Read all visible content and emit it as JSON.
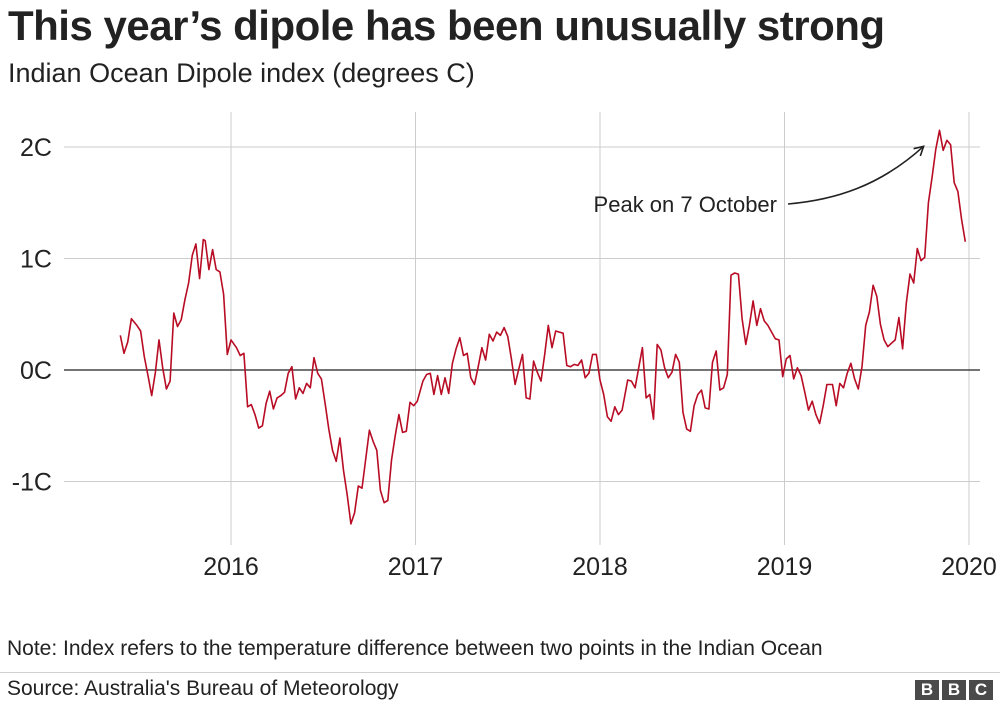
{
  "title": "This year’s dipole has been unusually strong",
  "subtitle": "Indian Ocean Dipole index (degrees C)",
  "note": "Note: Index refers to the temperature difference between two points in the Indian Ocean",
  "source": "Source: Australia's Bureau of Meteorology",
  "logo": [
    "B",
    "B",
    "C"
  ],
  "chart_data": {
    "type": "line",
    "title": "",
    "xlabel": "",
    "ylabel": "",
    "y_tick_labels": [
      "2C",
      "1C",
      "0C",
      "-1C"
    ],
    "y_ticks": [
      2,
      1,
      0,
      -1
    ],
    "x_tick_labels": [
      "2016",
      "2017",
      "2018",
      "2019",
      "2020"
    ],
    "x_ticks": [
      2016,
      2017,
      2018,
      2019,
      2020
    ],
    "xlim": [
      2015.38,
      2020.12
    ],
    "ylim": [
      -1.55,
      2.3
    ],
    "grid": true,
    "line_color": "#b80c24",
    "zero_line_color": "#222222",
    "annotation": {
      "text": "Peak on 7 October",
      "x": 2019.77,
      "y": 2.15
    },
    "series": [
      {
        "name": "",
        "points": [
          [
            2015.4,
            0.31
          ],
          [
            2015.42,
            0.15
          ],
          [
            2015.44,
            0.25
          ],
          [
            2015.46,
            0.46
          ],
          [
            2015.49,
            0.4
          ],
          [
            2015.51,
            0.35
          ],
          [
            2015.53,
            0.12
          ],
          [
            2015.55,
            -0.05
          ],
          [
            2015.57,
            -0.23
          ],
          [
            2015.59,
            -0.02
          ],
          [
            2015.61,
            0.27
          ],
          [
            2015.63,
            0.02
          ],
          [
            2015.65,
            -0.17
          ],
          [
            2015.67,
            -0.1
          ],
          [
            2015.69,
            0.51
          ],
          [
            2015.71,
            0.39
          ],
          [
            2015.73,
            0.45
          ],
          [
            2015.75,
            0.63
          ],
          [
            2015.77,
            0.78
          ],
          [
            2015.79,
            1.03
          ],
          [
            2015.81,
            1.13
          ],
          [
            2015.83,
            0.82
          ],
          [
            2015.85,
            1.17
          ],
          [
            2015.86,
            1.16
          ],
          [
            2015.88,
            0.9
          ],
          [
            2015.9,
            1.08
          ],
          [
            2015.92,
            0.9
          ],
          [
            2015.94,
            0.88
          ],
          [
            2015.96,
            0.68
          ],
          [
            2015.98,
            0.14
          ],
          [
            2016.0,
            0.27
          ],
          [
            2016.03,
            0.2
          ],
          [
            2016.05,
            0.13
          ],
          [
            2016.07,
            0.15
          ],
          [
            2016.09,
            -0.33
          ],
          [
            2016.11,
            -0.31
          ],
          [
            2016.13,
            -0.4
          ],
          [
            2016.15,
            -0.52
          ],
          [
            2016.17,
            -0.5
          ],
          [
            2016.19,
            -0.3
          ],
          [
            2016.21,
            -0.19
          ],
          [
            2016.23,
            -0.35
          ],
          [
            2016.25,
            -0.25
          ],
          [
            2016.27,
            -0.23
          ],
          [
            2016.29,
            -0.2
          ],
          [
            2016.31,
            -0.03
          ],
          [
            2016.33,
            0.03
          ],
          [
            2016.35,
            -0.26
          ],
          [
            2016.37,
            -0.16
          ],
          [
            2016.39,
            -0.21
          ],
          [
            2016.41,
            -0.12
          ],
          [
            2016.43,
            -0.16
          ],
          [
            2016.45,
            0.11
          ],
          [
            2016.47,
            -0.03
          ],
          [
            2016.49,
            -0.08
          ],
          [
            2016.51,
            -0.3
          ],
          [
            2016.53,
            -0.53
          ],
          [
            2016.55,
            -0.72
          ],
          [
            2016.57,
            -0.82
          ],
          [
            2016.59,
            -0.61
          ],
          [
            2016.61,
            -0.9
          ],
          [
            2016.63,
            -1.12
          ],
          [
            2016.65,
            -1.38
          ],
          [
            2016.67,
            -1.28
          ],
          [
            2016.69,
            -1.04
          ],
          [
            2016.71,
            -1.06
          ],
          [
            2016.73,
            -0.8
          ],
          [
            2016.75,
            -0.54
          ],
          [
            2016.77,
            -0.64
          ],
          [
            2016.79,
            -0.72
          ],
          [
            2016.81,
            -1.08
          ],
          [
            2016.83,
            -1.19
          ],
          [
            2016.85,
            -1.17
          ],
          [
            2016.87,
            -0.81
          ],
          [
            2016.89,
            -0.59
          ],
          [
            2016.91,
            -0.4
          ],
          [
            2016.93,
            -0.56
          ],
          [
            2016.95,
            -0.55
          ],
          [
            2016.97,
            -0.29
          ],
          [
            2016.99,
            -0.32
          ],
          [
            2017.01,
            -0.28
          ],
          [
            2017.04,
            -0.1
          ],
          [
            2017.06,
            -0.04
          ],
          [
            2017.08,
            -0.03
          ],
          [
            2017.1,
            -0.22
          ],
          [
            2017.12,
            -0.05
          ],
          [
            2017.14,
            -0.22
          ],
          [
            2017.16,
            -0.07
          ],
          [
            2017.18,
            -0.21
          ],
          [
            2017.2,
            0.06
          ],
          [
            2017.22,
            0.19
          ],
          [
            2017.24,
            0.29
          ],
          [
            2017.26,
            0.13
          ],
          [
            2017.28,
            0.15
          ],
          [
            2017.3,
            -0.07
          ],
          [
            2017.32,
            -0.13
          ],
          [
            2017.34,
            0.03
          ],
          [
            2017.36,
            0.2
          ],
          [
            2017.38,
            0.09
          ],
          [
            2017.4,
            0.32
          ],
          [
            2017.42,
            0.26
          ],
          [
            2017.44,
            0.34
          ],
          [
            2017.46,
            0.31
          ],
          [
            2017.48,
            0.38
          ],
          [
            2017.5,
            0.3
          ],
          [
            2017.52,
            0.1
          ],
          [
            2017.54,
            -0.13
          ],
          [
            2017.56,
            0.01
          ],
          [
            2017.58,
            0.14
          ],
          [
            2017.6,
            -0.25
          ],
          [
            2017.62,
            -0.26
          ],
          [
            2017.64,
            0.08
          ],
          [
            2017.66,
            -0.02
          ],
          [
            2017.68,
            -0.1
          ],
          [
            2017.7,
            0.14
          ],
          [
            2017.72,
            0.4
          ],
          [
            2017.74,
            0.2
          ],
          [
            2017.76,
            0.35
          ],
          [
            2017.78,
            0.34
          ],
          [
            2017.8,
            0.33
          ],
          [
            2017.82,
            0.04
          ],
          [
            2017.84,
            0.03
          ],
          [
            2017.86,
            0.05
          ],
          [
            2017.88,
            0.04
          ],
          [
            2017.9,
            0.09
          ],
          [
            2017.92,
            -0.07
          ],
          [
            2017.94,
            -0.03
          ],
          [
            2017.96,
            0.14
          ],
          [
            2017.98,
            0.14
          ],
          [
            2018.0,
            -0.09
          ],
          [
            2018.02,
            -0.22
          ],
          [
            2018.04,
            -0.42
          ],
          [
            2018.06,
            -0.46
          ],
          [
            2018.08,
            -0.33
          ],
          [
            2018.1,
            -0.4
          ],
          [
            2018.12,
            -0.36
          ],
          [
            2018.15,
            -0.09
          ],
          [
            2018.17,
            -0.1
          ],
          [
            2018.19,
            -0.16
          ],
          [
            2018.21,
            0.02
          ],
          [
            2018.23,
            0.2
          ],
          [
            2018.25,
            -0.25
          ],
          [
            2018.27,
            -0.22
          ],
          [
            2018.29,
            -0.44
          ],
          [
            2018.31,
            0.23
          ],
          [
            2018.33,
            0.18
          ],
          [
            2018.35,
            0.02
          ],
          [
            2018.37,
            -0.07
          ],
          [
            2018.39,
            -0.02
          ],
          [
            2018.41,
            0.14
          ],
          [
            2018.43,
            0.07
          ],
          [
            2018.45,
            -0.38
          ],
          [
            2018.47,
            -0.53
          ],
          [
            2018.49,
            -0.55
          ],
          [
            2018.51,
            -0.32
          ],
          [
            2018.53,
            -0.22
          ],
          [
            2018.55,
            -0.18
          ],
          [
            2018.57,
            -0.34
          ],
          [
            2018.59,
            -0.35
          ],
          [
            2018.61,
            0.07
          ],
          [
            2018.63,
            0.17
          ],
          [
            2018.65,
            -0.18
          ],
          [
            2018.67,
            -0.16
          ],
          [
            2018.69,
            -0.04
          ],
          [
            2018.71,
            0.85
          ],
          [
            2018.73,
            0.87
          ],
          [
            2018.75,
            0.86
          ],
          [
            2018.77,
            0.46
          ],
          [
            2018.79,
            0.23
          ],
          [
            2018.81,
            0.4
          ],
          [
            2018.83,
            0.62
          ],
          [
            2018.85,
            0.4
          ],
          [
            2018.87,
            0.55
          ],
          [
            2018.89,
            0.44
          ],
          [
            2018.91,
            0.4
          ],
          [
            2018.93,
            0.34
          ],
          [
            2018.95,
            0.28
          ],
          [
            2018.97,
            0.27
          ],
          [
            2018.99,
            -0.06
          ],
          [
            2019.01,
            0.1
          ],
          [
            2019.03,
            0.13
          ],
          [
            2019.05,
            -0.08
          ],
          [
            2019.07,
            0.02
          ],
          [
            2019.09,
            -0.05
          ],
          [
            2019.11,
            -0.2
          ],
          [
            2019.13,
            -0.36
          ],
          [
            2019.15,
            -0.28
          ],
          [
            2019.17,
            -0.4
          ],
          [
            2019.19,
            -0.48
          ],
          [
            2019.21,
            -0.32
          ],
          [
            2019.23,
            -0.13
          ],
          [
            2019.26,
            -0.13
          ],
          [
            2019.28,
            -0.32
          ],
          [
            2019.3,
            -0.12
          ],
          [
            2019.32,
            -0.16
          ],
          [
            2019.34,
            -0.03
          ],
          [
            2019.36,
            0.06
          ],
          [
            2019.38,
            -0.08
          ],
          [
            2019.4,
            -0.17
          ],
          [
            2019.42,
            0.03
          ],
          [
            2019.44,
            0.4
          ],
          [
            2019.46,
            0.52
          ],
          [
            2019.48,
            0.76
          ],
          [
            2019.5,
            0.66
          ],
          [
            2019.52,
            0.41
          ],
          [
            2019.54,
            0.27
          ],
          [
            2019.56,
            0.21
          ],
          [
            2019.58,
            0.24
          ],
          [
            2019.6,
            0.27
          ],
          [
            2019.62,
            0.47
          ],
          [
            2019.64,
            0.19
          ],
          [
            2019.66,
            0.6
          ],
          [
            2019.68,
            0.86
          ],
          [
            2019.7,
            0.78
          ],
          [
            2019.72,
            1.09
          ],
          [
            2019.74,
            0.98
          ],
          [
            2019.76,
            1.01
          ],
          [
            2019.78,
            1.5
          ],
          [
            2019.8,
            1.73
          ],
          [
            2019.82,
            1.98
          ],
          [
            2019.84,
            2.15
          ],
          [
            2019.86,
            1.97
          ],
          [
            2019.88,
            2.06
          ],
          [
            2019.9,
            2.02
          ],
          [
            2019.92,
            1.68
          ],
          [
            2019.94,
            1.6
          ],
          [
            2019.96,
            1.35
          ],
          [
            2019.98,
            1.15
          ]
        ]
      }
    ]
  }
}
